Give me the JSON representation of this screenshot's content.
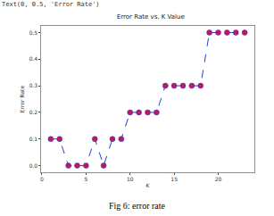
{
  "output_text": "Text(0, 0.5, 'Error Rate')",
  "caption": "Fig 6: error rate",
  "chart_data": {
    "type": "line",
    "title": "Error Rate vs. K Value",
    "x_label": "K",
    "y_label": "Error Rate",
    "x": [
      1,
      2,
      3,
      4,
      5,
      6,
      7,
      8,
      9,
      10,
      11,
      12,
      13,
      14,
      15,
      16,
      17,
      18,
      19,
      20,
      21,
      22,
      23
    ],
    "series": [
      {
        "name": "Error Rate",
        "color": "#1f3fd6",
        "line_style": "dashed",
        "marker": "circle",
        "colors": [
          "#c2185b",
          "#c2185b",
          "#c2185b",
          "#c2185b",
          "#c2185b",
          "#c2185b",
          "#c2185b",
          "#c2185b",
          "#c2185b",
          "#c2185b",
          "#c2185b",
          "#c2185b",
          "#c2185b",
          "#c2185b",
          "#c2185b",
          "#c2185b",
          "#c2185b",
          "#c2185b",
          "#c2185b",
          "#c2185b",
          "#c2185b",
          "#c2185b",
          "#c2185b"
        ],
        "values": [
          0.1,
          0.1,
          0.0,
          0.0,
          0.0,
          0.1,
          0.0,
          0.1,
          0.1,
          0.2,
          0.2,
          0.2,
          0.2,
          0.3,
          0.3,
          0.3,
          0.3,
          0.3,
          0.5,
          0.5,
          0.5,
          0.5,
          0.5
        ]
      }
    ],
    "xlim": [
      -0.1,
      24.1
    ],
    "xticks": [
      0,
      5,
      10,
      15,
      20
    ],
    "ylim": [
      -0.025,
      0.525
    ],
    "yticks": [
      {
        "value": 0,
        "label": "0.0"
      },
      0.1,
      0.2,
      0.3,
      0.4,
      0.5
    ],
    "grid": false
  }
}
